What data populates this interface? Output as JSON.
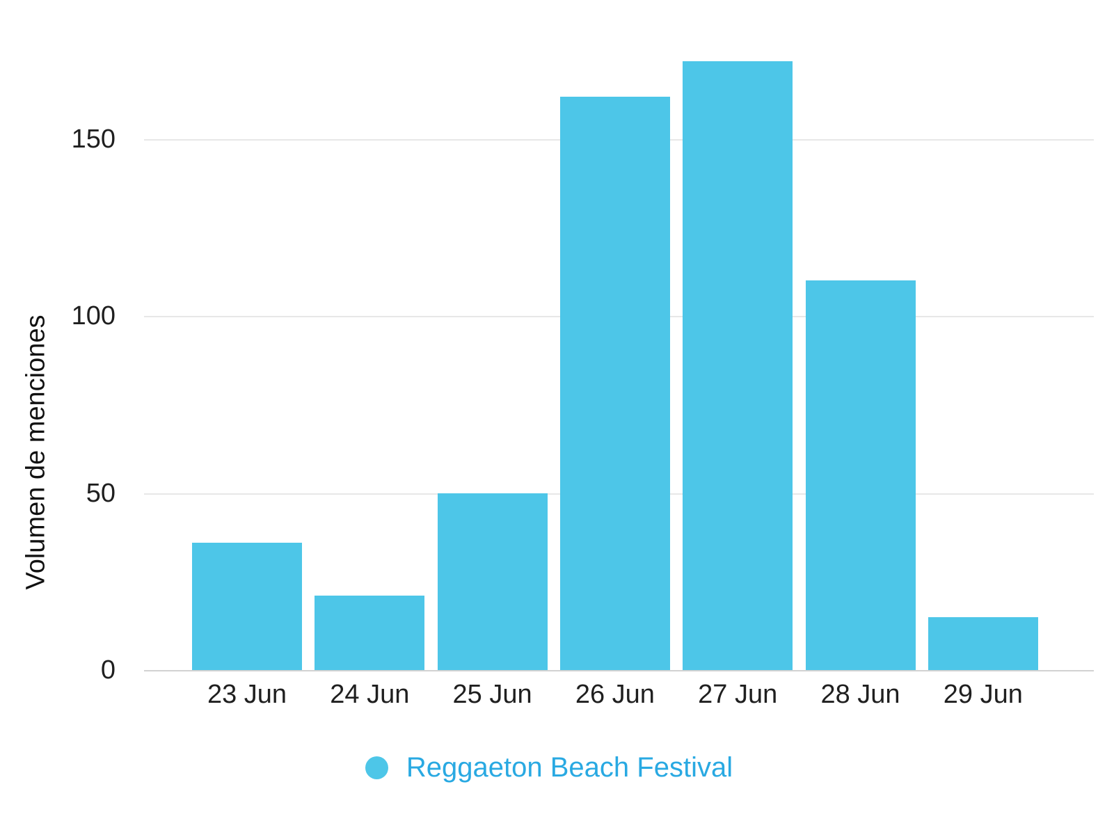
{
  "chart_data": {
    "type": "bar",
    "title": "",
    "xlabel": "",
    "ylabel": "Volumen de menciones",
    "categories": [
      "23 Jun",
      "24 Jun",
      "25 Jun",
      "26 Jun",
      "27 Jun",
      "28 Jun",
      "29 Jun"
    ],
    "series": [
      {
        "name": "Reggaeton Beach Festival",
        "values": [
          36,
          21,
          50,
          162,
          172,
          110,
          15
        ]
      }
    ],
    "yticks": [
      0,
      50,
      100,
      150
    ],
    "ylim": [
      0,
      174
    ],
    "grid": true,
    "legend_position": "bottom",
    "colors": {
      "bar_fill": "#4dc6e8",
      "legend_dot": "#4dc6e8",
      "legend_text": "#29a9e2",
      "axis_text": "#1f1f1f",
      "gridline": "#e7e7e7",
      "baseline": "#d2d2d2",
      "background": "#ffffff"
    }
  }
}
